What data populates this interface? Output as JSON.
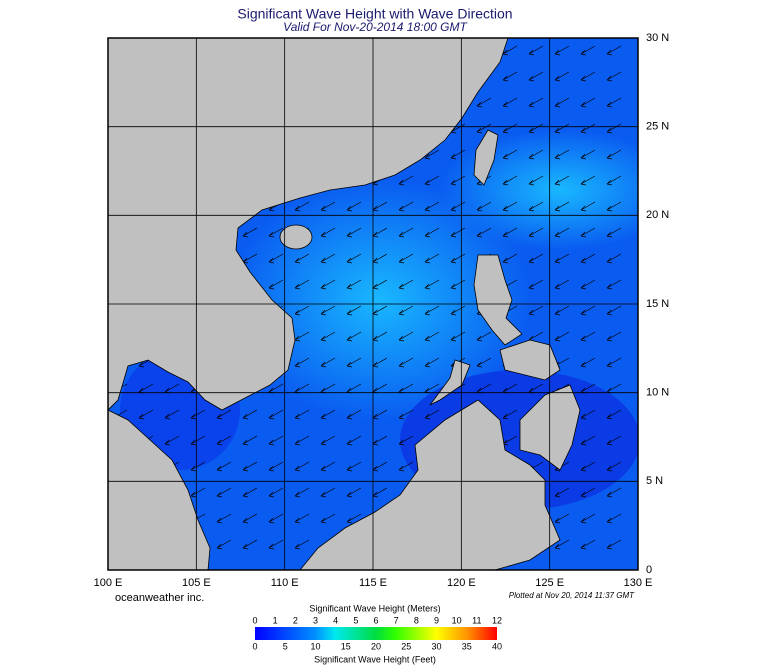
{
  "title": "Significant Wave Height with Wave Direction",
  "subtitle": "Valid For Nov-20-2014 18:00 GMT",
  "credit": "oceanweather inc.",
  "plotted": "Plotted at Nov 20, 2014 11:37 GMT",
  "map": {
    "lon_ticks": [
      {
        "value": 100,
        "label": "100 E"
      },
      {
        "value": 105,
        "label": "105 E"
      },
      {
        "value": 110,
        "label": "110 E"
      },
      {
        "value": 115,
        "label": "115 E"
      },
      {
        "value": 120,
        "label": "120 E"
      },
      {
        "value": 125,
        "label": "125 E"
      },
      {
        "value": 130,
        "label": "130 E"
      }
    ],
    "lat_ticks": [
      {
        "value": 0,
        "label": "0"
      },
      {
        "value": 5,
        "label": "5 N"
      },
      {
        "value": 10,
        "label": "10 N"
      },
      {
        "value": 15,
        "label": "15 N"
      },
      {
        "value": 20,
        "label": "20 N"
      },
      {
        "value": 25,
        "label": "25 N"
      },
      {
        "value": 30,
        "label": "30 N"
      }
    ]
  },
  "colorbar": {
    "title_meters": "Significant Wave Height (Meters)",
    "title_feet": "Significant Wave Height (Feet)",
    "meter_ticks": [
      0,
      1,
      2,
      3,
      4,
      5,
      6,
      7,
      8,
      9,
      10,
      11,
      12
    ],
    "feet_ticks": [
      0,
      5,
      10,
      15,
      20,
      25,
      30,
      35,
      40
    ]
  }
}
